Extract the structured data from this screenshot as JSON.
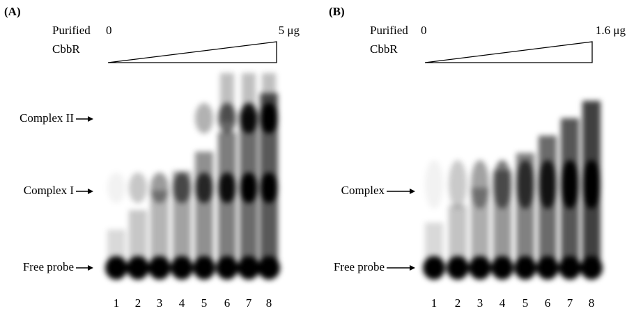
{
  "panels": [
    {
      "label": "(A)",
      "protein": [
        "Purified",
        "CbbR"
      ],
      "start": "0",
      "end": "5 μg",
      "bands": [
        "Complex II",
        "Complex I",
        "Free probe"
      ],
      "lanes": [
        "1",
        "2",
        "3",
        "4",
        "5",
        "6",
        "7",
        "8"
      ]
    },
    {
      "label": "(B)",
      "protein": [
        "Purified",
        "CbbR"
      ],
      "start": "0",
      "end": "1.6 μg",
      "bands": [
        "Complex",
        "Free probe"
      ],
      "lanes": [
        "1",
        "2",
        "3",
        "4",
        "5",
        "6",
        "7",
        "8"
      ]
    }
  ]
}
